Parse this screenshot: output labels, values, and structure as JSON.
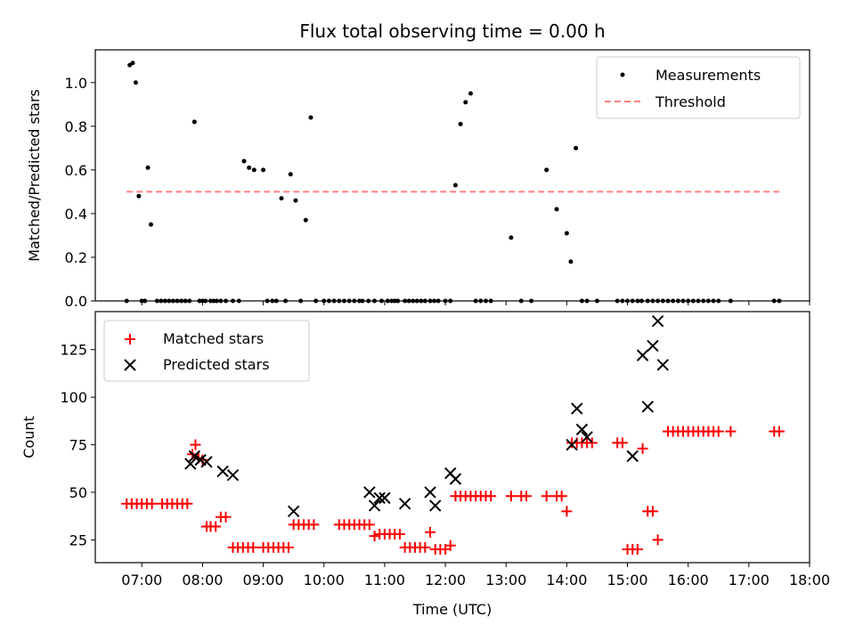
{
  "chart_data": [
    {
      "type": "scatter",
      "title": "Flux total observing time = 0.00 h",
      "xlabel": "",
      "ylabel": "Matched/Predicted stars",
      "xlim": [
        "06:14",
        "18:00"
      ],
      "ylim": [
        0,
        1.15
      ],
      "yticks": [
        0.0,
        0.2,
        0.4,
        0.6,
        0.8,
        1.0
      ],
      "ytick_labels": [
        "0.0",
        "0.2",
        "0.4",
        "0.6",
        "0.8",
        "1.0"
      ],
      "legend_position": "upper right",
      "series": [
        {
          "name": "Measurements",
          "marker": "dot",
          "color": "#000000",
          "x": [
            "06:45",
            "06:48",
            "06:51",
            "06:54",
            "06:57",
            "07:00",
            "07:03",
            "07:06",
            "07:09",
            "07:15",
            "07:19",
            "07:23",
            "07:27",
            "07:31",
            "07:35",
            "07:39",
            "07:43",
            "07:47",
            "07:52",
            "07:57",
            "08:00",
            "08:03",
            "08:08",
            "08:11",
            "08:14",
            "08:18",
            "08:23",
            "08:30",
            "08:36",
            "08:41",
            "08:46",
            "08:51",
            "09:00",
            "09:04",
            "09:09",
            "09:13",
            "09:18",
            "09:22",
            "09:27",
            "09:32",
            "09:37",
            "09:42",
            "09:47",
            "09:52",
            "10:00",
            "10:05",
            "10:10",
            "10:15",
            "10:20",
            "10:25",
            "10:30",
            "10:35",
            "10:38",
            "10:44",
            "10:50",
            "10:57",
            "11:03",
            "11:07",
            "11:10",
            "11:13",
            "11:20",
            "11:24",
            "11:28",
            "11:32",
            "11:36",
            "11:40",
            "11:45",
            "11:49",
            "11:53",
            "12:00",
            "12:05",
            "12:10",
            "12:15",
            "12:20",
            "12:25",
            "12:30",
            "12:35",
            "12:40",
            "12:45",
            "13:05",
            "13:15",
            "13:25",
            "13:40",
            "13:50",
            "14:00",
            "14:04",
            "14:09",
            "14:15",
            "14:20",
            "14:30",
            "14:50",
            "14:55",
            "15:00",
            "15:05",
            "15:10",
            "15:14",
            "15:20",
            "15:25",
            "15:30",
            "15:35",
            "15:40",
            "15:45",
            "15:50",
            "15:55",
            "16:00",
            "16:05",
            "16:10",
            "16:15",
            "16:20",
            "16:25",
            "16:30",
            "16:42",
            "17:25",
            "17:30"
          ],
          "y": [
            0.0,
            1.08,
            1.09,
            1.0,
            0.48,
            0.0,
            0.0,
            0.61,
            0.35,
            0.0,
            0.0,
            0.0,
            0.0,
            0.0,
            0.0,
            0.0,
            0.0,
            0.0,
            0.82,
            0.0,
            0.0,
            0.0,
            0.0,
            0.0,
            0.0,
            0.0,
            0.0,
            0.0,
            0.0,
            0.64,
            0.61,
            0.6,
            0.6,
            0.0,
            0.0,
            0.0,
            0.47,
            0.0,
            0.58,
            0.46,
            0.0,
            0.37,
            0.84,
            0.0,
            0.0,
            0.0,
            0.0,
            0.0,
            0.0,
            0.0,
            0.0,
            0.0,
            0.0,
            0.0,
            0.0,
            0.0,
            0.0,
            0.0,
            0.0,
            0.0,
            0.0,
            0.0,
            0.0,
            0.0,
            0.0,
            0.0,
            0.0,
            0.0,
            0.0,
            0.0,
            0.0,
            0.53,
            0.81,
            0.91,
            0.95,
            0.0,
            0.0,
            0.0,
            0.0,
            0.29,
            0.0,
            0.0,
            0.6,
            0.42,
            0.31,
            0.18,
            0.7,
            0.0,
            0.0,
            0.0,
            0.0,
            0.0,
            0.0,
            0.0,
            0.0,
            0.0,
            0.0,
            0.0,
            0.0,
            0.0,
            0.0,
            0.0,
            0.0,
            0.0,
            0.0,
            0.0,
            0.0,
            0.0,
            0.0,
            0.0,
            0.0,
            0.0,
            0.0,
            0.0
          ]
        },
        {
          "name": "Threshold",
          "line": "dashed",
          "color": "#ff8080",
          "x": [
            "06:45",
            "17:30"
          ],
          "y": [
            0.5,
            0.5
          ]
        }
      ]
    },
    {
      "type": "scatter",
      "title": "",
      "xlabel": "Time (UTC)",
      "ylabel": "Count",
      "xlim": [
        "06:14",
        "18:00"
      ],
      "ylim": [
        13,
        145
      ],
      "yticks": [
        25,
        50,
        75,
        100,
        125
      ],
      "ytick_labels": [
        "25",
        "50",
        "75",
        "100",
        "125"
      ],
      "xticks": [
        "07:00",
        "08:00",
        "09:00",
        "10:00",
        "11:00",
        "12:00",
        "13:00",
        "14:00",
        "15:00",
        "16:00",
        "17:00",
        "18:00"
      ],
      "legend_position": "upper left",
      "series": [
        {
          "name": "Matched stars",
          "marker": "plus",
          "color": "#ff0000",
          "points": [
            [
              "06:45",
              44
            ],
            [
              "06:50",
              44
            ],
            [
              "06:55",
              44
            ],
            [
              "07:00",
              44
            ],
            [
              "07:05",
              44
            ],
            [
              "07:10",
              44
            ],
            [
              "07:20",
              44
            ],
            [
              "07:25",
              44
            ],
            [
              "07:30",
              44
            ],
            [
              "07:35",
              44
            ],
            [
              "07:40",
              44
            ],
            [
              "07:45",
              44
            ],
            [
              "07:50",
              70
            ],
            [
              "07:53",
              75
            ],
            [
              "07:56",
              68
            ],
            [
              "08:00",
              67
            ],
            [
              "08:04",
              32
            ],
            [
              "08:08",
              32
            ],
            [
              "08:13",
              32
            ],
            [
              "08:18",
              37
            ],
            [
              "08:23",
              37
            ],
            [
              "08:30",
              21
            ],
            [
              "08:35",
              21
            ],
            [
              "08:40",
              21
            ],
            [
              "08:45",
              21
            ],
            [
              "08:50",
              21
            ],
            [
              "09:00",
              21
            ],
            [
              "09:05",
              21
            ],
            [
              "09:10",
              21
            ],
            [
              "09:15",
              21
            ],
            [
              "09:20",
              21
            ],
            [
              "09:25",
              21
            ],
            [
              "09:30",
              33
            ],
            [
              "09:35",
              33
            ],
            [
              "09:40",
              33
            ],
            [
              "09:45",
              33
            ],
            [
              "09:50",
              33
            ],
            [
              "10:15",
              33
            ],
            [
              "10:20",
              33
            ],
            [
              "10:25",
              33
            ],
            [
              "10:30",
              33
            ],
            [
              "10:35",
              33
            ],
            [
              "10:40",
              33
            ],
            [
              "10:45",
              33
            ],
            [
              "10:50",
              27
            ],
            [
              "10:55",
              28
            ],
            [
              "11:00",
              28
            ],
            [
              "11:05",
              28
            ],
            [
              "11:10",
              28
            ],
            [
              "11:15",
              28
            ],
            [
              "11:20",
              21
            ],
            [
              "11:25",
              21
            ],
            [
              "11:30",
              21
            ],
            [
              "11:35",
              21
            ],
            [
              "11:40",
              21
            ],
            [
              "11:45",
              29
            ],
            [
              "11:50",
              20
            ],
            [
              "11:55",
              20
            ],
            [
              "12:00",
              20
            ],
            [
              "12:05",
              22
            ],
            [
              "12:10",
              48
            ],
            [
              "12:15",
              48
            ],
            [
              "12:20",
              48
            ],
            [
              "12:25",
              48
            ],
            [
              "12:30",
              48
            ],
            [
              "12:35",
              48
            ],
            [
              "12:40",
              48
            ],
            [
              "12:45",
              48
            ],
            [
              "13:05",
              48
            ],
            [
              "13:15",
              48
            ],
            [
              "13:20",
              48
            ],
            [
              "13:40",
              48
            ],
            [
              "13:50",
              48
            ],
            [
              "13:55",
              48
            ],
            [
              "14:00",
              40
            ],
            [
              "14:05",
              76
            ],
            [
              "14:10",
              76
            ],
            [
              "14:15",
              76
            ],
            [
              "14:20",
              76
            ],
            [
              "14:25",
              76
            ],
            [
              "14:50",
              76
            ],
            [
              "14:55",
              76
            ],
            [
              "15:00",
              20
            ],
            [
              "15:05",
              20
            ],
            [
              "15:10",
              20
            ],
            [
              "15:15",
              73
            ],
            [
              "15:20",
              40
            ],
            [
              "15:25",
              40
            ],
            [
              "15:30",
              25
            ],
            [
              "15:40",
              82
            ],
            [
              "15:45",
              82
            ],
            [
              "15:50",
              82
            ],
            [
              "15:55",
              82
            ],
            [
              "16:00",
              82
            ],
            [
              "16:05",
              82
            ],
            [
              "16:10",
              82
            ],
            [
              "16:15",
              82
            ],
            [
              "16:20",
              82
            ],
            [
              "16:25",
              82
            ],
            [
              "16:30",
              82
            ],
            [
              "16:42",
              82
            ],
            [
              "17:25",
              82
            ],
            [
              "17:30",
              82
            ]
          ]
        },
        {
          "name": "Predicted stars",
          "marker": "x",
          "color": "#000000",
          "points": [
            [
              "07:48",
              65
            ],
            [
              "07:52",
              69
            ],
            [
              "07:58",
              67
            ],
            [
              "08:04",
              66
            ],
            [
              "08:20",
              61
            ],
            [
              "08:30",
              59
            ],
            [
              "09:30",
              40
            ],
            [
              "10:45",
              50
            ],
            [
              "10:50",
              43
            ],
            [
              "10:55",
              47
            ],
            [
              "11:00",
              47
            ],
            [
              "11:20",
              44
            ],
            [
              "11:45",
              50
            ],
            [
              "11:50",
              43
            ],
            [
              "12:05",
              60
            ],
            [
              "12:10",
              57
            ],
            [
              "14:05",
              75
            ],
            [
              "14:10",
              94
            ],
            [
              "14:15",
              83
            ],
            [
              "14:20",
              79
            ],
            [
              "15:05",
              69
            ],
            [
              "15:15",
              122
            ],
            [
              "15:20",
              95
            ],
            [
              "15:25",
              127
            ],
            [
              "15:30",
              140
            ],
            [
              "15:35",
              117
            ]
          ]
        }
      ]
    }
  ]
}
